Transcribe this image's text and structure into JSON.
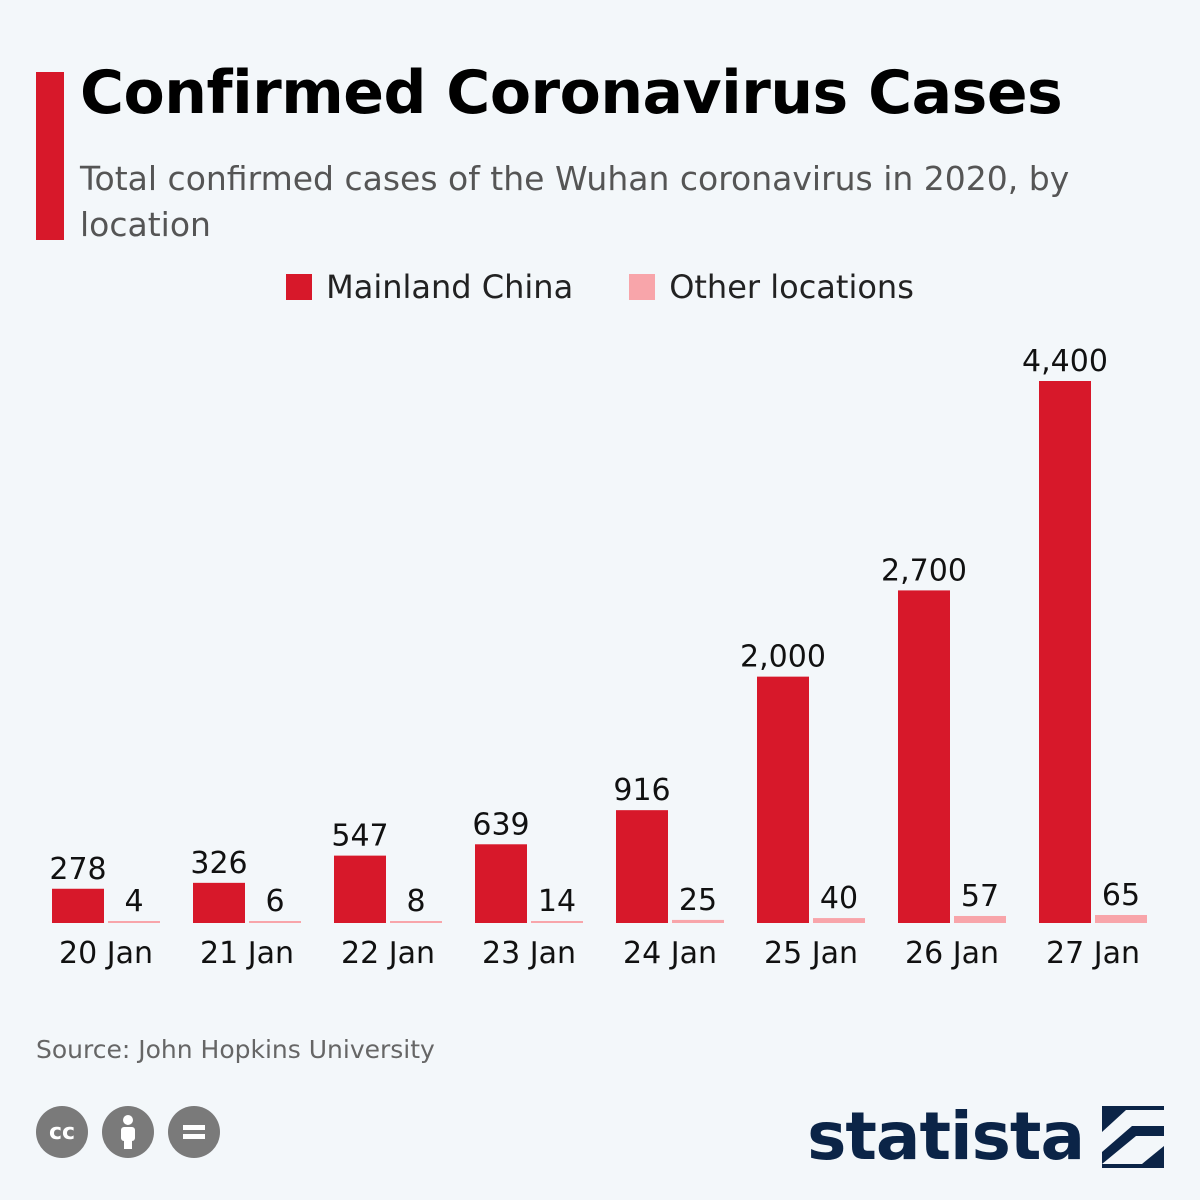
{
  "header": {
    "title": "Confirmed Coronavirus Cases",
    "subtitle": "Total confirmed cases of the Wuhan coronavirus in 2020, by location"
  },
  "colors": {
    "accent": "#d7182a",
    "mainland": "#d7182a",
    "other": "#f8a5aa",
    "brand": "#0b2447"
  },
  "chart_data": {
    "type": "bar",
    "title": "Confirmed Coronavirus Cases",
    "subtitle": "Total confirmed cases of the Wuhan coronavirus in 2020, by location",
    "categories": [
      "20 Jan",
      "21 Jan",
      "22 Jan",
      "23 Jan",
      "24 Jan",
      "25 Jan",
      "26 Jan",
      "27 Jan"
    ],
    "series": [
      {
        "name": "Mainland China",
        "values": [
          278,
          326,
          547,
          639,
          916,
          2000,
          2700,
          4400
        ],
        "labels": [
          "278",
          "326",
          "547",
          "639",
          "916",
          "2,000",
          "2,700",
          "4,400"
        ]
      },
      {
        "name": "Other locations",
        "values": [
          4,
          6,
          8,
          14,
          25,
          40,
          57,
          65
        ],
        "labels": [
          "4",
          "6",
          "8",
          "14",
          "25",
          "40",
          "57",
          "65"
        ]
      }
    ],
    "ylim": [
      0,
      4400
    ],
    "grid": false,
    "legend_position": "top-center"
  },
  "footer": {
    "source": "Source: John Hopkins University",
    "license_icons": [
      "cc-icon",
      "attribution-icon",
      "no-derivatives-icon"
    ],
    "brand": "statista"
  }
}
